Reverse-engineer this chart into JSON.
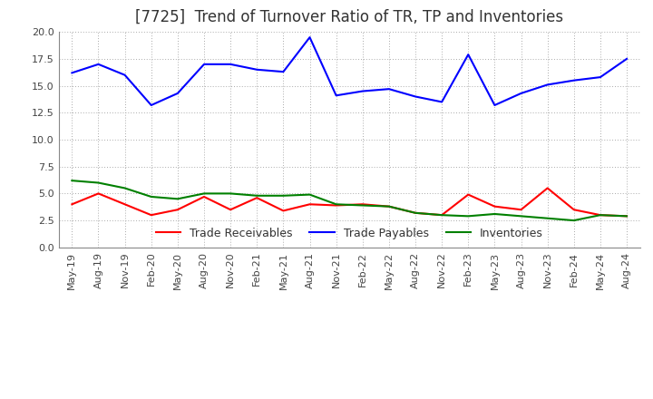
{
  "title": "[7725]  Trend of Turnover Ratio of TR, TP and Inventories",
  "xlabels": [
    "May-19",
    "Aug-19",
    "Nov-19",
    "Feb-20",
    "May-20",
    "Aug-20",
    "Nov-20",
    "Feb-21",
    "May-21",
    "Aug-21",
    "Nov-21",
    "Feb-22",
    "May-22",
    "Aug-22",
    "Nov-22",
    "Feb-23",
    "May-23",
    "Aug-23",
    "Nov-23",
    "Feb-24",
    "May-24",
    "Aug-24"
  ],
  "trade_receivables": [
    4.0,
    5.0,
    4.0,
    3.0,
    3.5,
    4.7,
    3.5,
    4.6,
    3.4,
    4.0,
    3.9,
    4.0,
    3.8,
    3.2,
    3.0,
    4.9,
    3.8,
    3.5,
    5.5,
    3.5,
    3.0,
    2.9
  ],
  "trade_payables": [
    16.2,
    17.0,
    16.0,
    13.2,
    14.3,
    17.0,
    17.0,
    16.5,
    16.3,
    19.5,
    14.1,
    14.5,
    14.7,
    14.0,
    13.5,
    17.9,
    13.2,
    14.3,
    15.1,
    15.5,
    15.8,
    17.5
  ],
  "inventories": [
    6.2,
    6.0,
    5.5,
    4.7,
    4.5,
    5.0,
    5.0,
    4.8,
    4.8,
    4.9,
    4.0,
    3.9,
    3.8,
    3.2,
    3.0,
    2.9,
    3.1,
    2.9,
    2.7,
    2.5,
    3.0,
    2.9
  ],
  "ylim": [
    0.0,
    20.0
  ],
  "yticks": [
    0.0,
    2.5,
    5.0,
    7.5,
    10.0,
    12.5,
    15.0,
    17.5,
    20.0
  ],
  "tr_color": "#ff0000",
  "tp_color": "#0000ff",
  "inv_color": "#008000",
  "tr_label": "Trade Receivables",
  "tp_label": "Trade Payables",
  "inv_label": "Inventories",
  "bg_color": "#ffffff",
  "grid_color": "#aaaaaa",
  "title_fontsize": 12,
  "legend_fontsize": 9,
  "axis_fontsize": 8
}
